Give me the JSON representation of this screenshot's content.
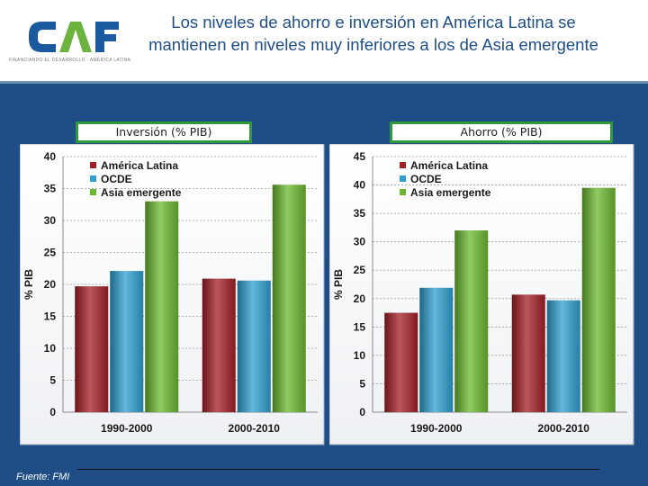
{
  "header": {
    "logo_text": "CAF",
    "logo_subtitle": "FINANCIANDO EL DESARROLLO · AMÉRICA LATINA",
    "title": "Los niveles de ahorro e inversión en América Latina se mantienen en niveles muy inferiores a los de Asia emergente"
  },
  "colors": {
    "background": "#1f4e86",
    "logo_blue": "#1c5aa0",
    "logo_green": "#6cb33e",
    "series": [
      "#a31f25",
      "#2e9fcf",
      "#6bb82f"
    ]
  },
  "chart_data": [
    {
      "type": "bar",
      "label": "Inversión (% PIB)",
      "ylabel": "% PIB",
      "ylim": [
        0,
        40
      ],
      "yticks": [
        0,
        5,
        10,
        15,
        20,
        25,
        30,
        35,
        40
      ],
      "categories": [
        "1990-2000",
        "2000-2010"
      ],
      "legend_position": "top-left",
      "series": [
        {
          "name": "América Latina",
          "values": [
            19.7,
            20.9
          ]
        },
        {
          "name": "OCDE",
          "values": [
            22.1,
            20.6
          ]
        },
        {
          "name": "Asia emergente",
          "values": [
            33.0,
            35.6
          ]
        }
      ]
    },
    {
      "type": "bar",
      "label": "Ahorro (% PIB)",
      "ylabel": "% PIB",
      "ylim": [
        0,
        45
      ],
      "yticks": [
        0,
        5,
        10,
        15,
        20,
        25,
        30,
        35,
        40,
        45
      ],
      "categories": [
        "1990-2000",
        "2000-2010"
      ],
      "legend_position": "top-left",
      "series": [
        {
          "name": "América Latina",
          "values": [
            17.5,
            20.7
          ]
        },
        {
          "name": "OCDE",
          "values": [
            21.9,
            19.7
          ]
        },
        {
          "name": "Asia emergente",
          "values": [
            32.0,
            39.5
          ]
        }
      ]
    }
  ],
  "footer": {
    "source": "Fuente: FMI"
  }
}
